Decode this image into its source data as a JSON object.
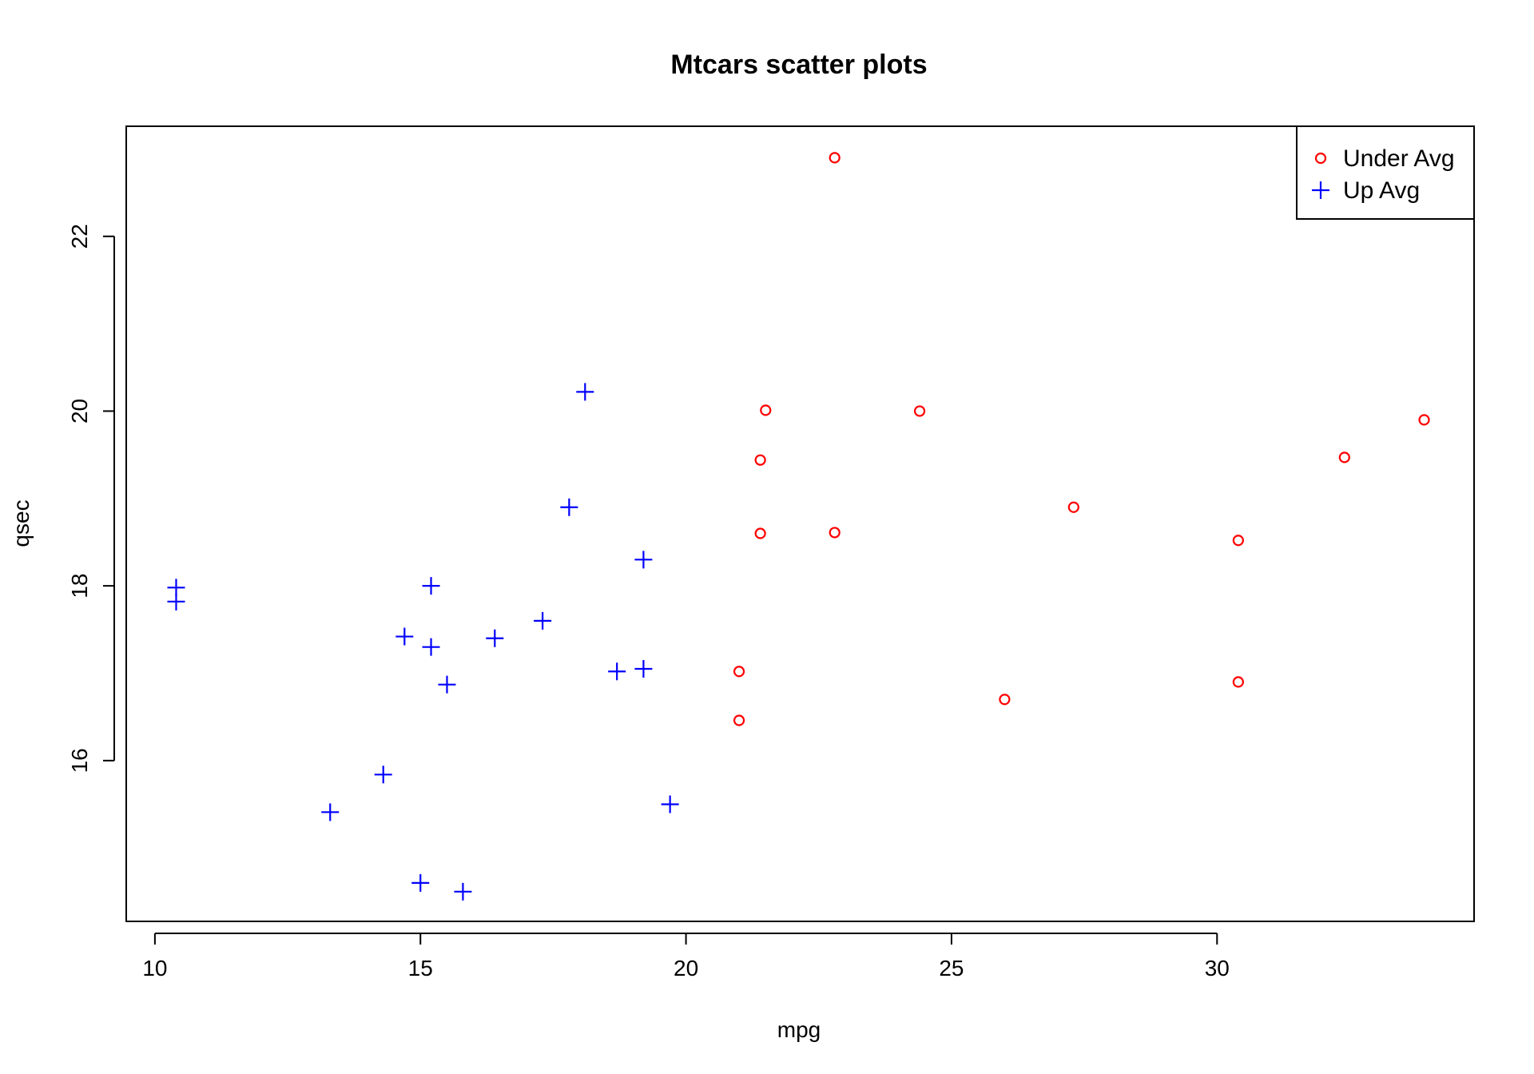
{
  "chart_data": {
    "type": "scatter",
    "title": "Mtcars scatter plots",
    "xlabel": "mpg",
    "ylabel": "qsec",
    "xlim": [
      9.46,
      34.84
    ],
    "ylim": [
      14.16,
      23.26
    ],
    "x_ticks": [
      10,
      15,
      20,
      25,
      30
    ],
    "y_ticks": [
      16,
      18,
      20,
      22
    ],
    "grid": false,
    "legend_position": "top-right",
    "series": [
      {
        "name": "Under Avg",
        "color": "#ff0000",
        "marker": "circle",
        "points": [
          {
            "x": 21.0,
            "y": 16.46
          },
          {
            "x": 21.0,
            "y": 17.02
          },
          {
            "x": 22.8,
            "y": 18.61
          },
          {
            "x": 21.4,
            "y": 19.44
          },
          {
            "x": 24.4,
            "y": 20.0
          },
          {
            "x": 22.8,
            "y": 22.9
          },
          {
            "x": 32.4,
            "y": 19.47
          },
          {
            "x": 30.4,
            "y": 18.52
          },
          {
            "x": 33.9,
            "y": 19.9
          },
          {
            "x": 21.5,
            "y": 20.01
          },
          {
            "x": 27.3,
            "y": 18.9
          },
          {
            "x": 26.0,
            "y": 16.7
          },
          {
            "x": 30.4,
            "y": 16.9
          },
          {
            "x": 21.4,
            "y": 18.6
          }
        ]
      },
      {
        "name": "Up Avg",
        "color": "#0000ff",
        "marker": "plus",
        "points": [
          {
            "x": 18.7,
            "y": 17.02
          },
          {
            "x": 18.1,
            "y": 20.22
          },
          {
            "x": 14.3,
            "y": 15.84
          },
          {
            "x": 19.2,
            "y": 18.3
          },
          {
            "x": 17.8,
            "y": 18.9
          },
          {
            "x": 16.4,
            "y": 17.4
          },
          {
            "x": 17.3,
            "y": 17.6
          },
          {
            "x": 15.2,
            "y": 18.0
          },
          {
            "x": 10.4,
            "y": 17.98
          },
          {
            "x": 10.4,
            "y": 17.82
          },
          {
            "x": 14.7,
            "y": 17.42
          },
          {
            "x": 15.5,
            "y": 16.87
          },
          {
            "x": 15.2,
            "y": 17.3
          },
          {
            "x": 13.3,
            "y": 15.41
          },
          {
            "x": 19.2,
            "y": 17.05
          },
          {
            "x": 15.8,
            "y": 14.5
          },
          {
            "x": 19.7,
            "y": 15.5
          },
          {
            "x": 15.0,
            "y": 14.6
          }
        ]
      }
    ]
  }
}
